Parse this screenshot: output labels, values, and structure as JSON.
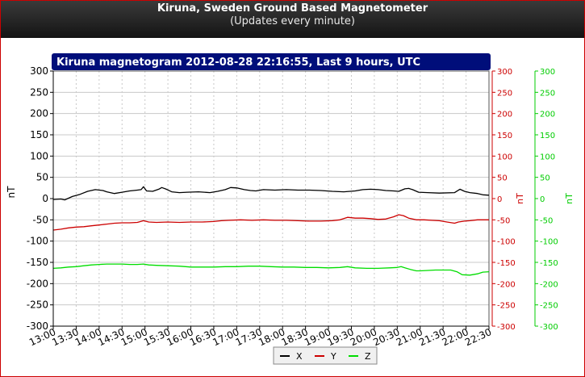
{
  "header": {
    "title": "Kiruna, Sweden Ground Based Magnetometer",
    "subtitle": "(Updates every minute)"
  },
  "chart_data": {
    "type": "line",
    "title": "Kiruna magnetogram 2012-08-28 22:16:55, Last 9 hours, UTC",
    "ylabel": "nT",
    "ylabel_right_1": "nT",
    "ylabel_right_2": "nT",
    "ylim": [
      -300,
      300
    ],
    "yticks": [
      300,
      250,
      200,
      150,
      100,
      50,
      0,
      -50,
      -100,
      -150,
      -200,
      -250,
      -300
    ],
    "yticks_right": [
      "300",
      "250",
      "200",
      "150",
      "100",
      "50",
      "0",
      "-50",
      "-100",
      "-150",
      "-200",
      "-250",
      "-300"
    ],
    "xlim": [
      0,
      570
    ],
    "xticks": [
      {
        "t": 0,
        "label": "13:00"
      },
      {
        "t": 30,
        "label": "13:30"
      },
      {
        "t": 60,
        "label": "14:00"
      },
      {
        "t": 90,
        "label": "14:30"
      },
      {
        "t": 120,
        "label": "15:00"
      },
      {
        "t": 150,
        "label": "15:30"
      },
      {
        "t": 180,
        "label": "16:00"
      },
      {
        "t": 210,
        "label": "16:30"
      },
      {
        "t": 240,
        "label": "17:00"
      },
      {
        "t": 270,
        "label": "17:30"
      },
      {
        "t": 300,
        "label": "18:00"
      },
      {
        "t": 330,
        "label": "18:30"
      },
      {
        "t": 360,
        "label": "19:00"
      },
      {
        "t": 390,
        "label": "19:30"
      },
      {
        "t": 420,
        "label": "20:00"
      },
      {
        "t": 450,
        "label": "20:30"
      },
      {
        "t": 480,
        "label": "21:00"
      },
      {
        "t": 510,
        "label": "21:30"
      },
      {
        "t": 540,
        "label": "22:00"
      },
      {
        "t": 570,
        "label": "22:30"
      }
    ],
    "grid": true,
    "legend_position": "bottom-center",
    "series": [
      {
        "name": "X",
        "color": "#000000",
        "points": [
          [
            0,
            -2
          ],
          [
            10,
            -1
          ],
          [
            15,
            -3
          ],
          [
            25,
            5
          ],
          [
            35,
            10
          ],
          [
            45,
            17
          ],
          [
            55,
            21
          ],
          [
            65,
            19
          ],
          [
            70,
            16
          ],
          [
            80,
            12
          ],
          [
            90,
            15
          ],
          [
            100,
            18
          ],
          [
            110,
            20
          ],
          [
            115,
            21
          ],
          [
            118,
            28
          ],
          [
            122,
            18
          ],
          [
            130,
            17
          ],
          [
            138,
            22
          ],
          [
            142,
            26
          ],
          [
            148,
            22
          ],
          [
            155,
            16
          ],
          [
            165,
            14
          ],
          [
            175,
            15
          ],
          [
            190,
            16
          ],
          [
            205,
            14
          ],
          [
            215,
            17
          ],
          [
            225,
            21
          ],
          [
            232,
            26
          ],
          [
            240,
            25
          ],
          [
            250,
            21
          ],
          [
            258,
            19
          ],
          [
            265,
            18
          ],
          [
            275,
            21
          ],
          [
            290,
            20
          ],
          [
            305,
            21
          ],
          [
            320,
            20
          ],
          [
            335,
            20
          ],
          [
            350,
            19
          ],
          [
            365,
            17
          ],
          [
            380,
            16
          ],
          [
            395,
            18
          ],
          [
            405,
            21
          ],
          [
            415,
            22
          ],
          [
            425,
            21
          ],
          [
            435,
            19
          ],
          [
            445,
            18
          ],
          [
            452,
            17
          ],
          [
            460,
            23
          ],
          [
            465,
            24
          ],
          [
            470,
            21
          ],
          [
            478,
            15
          ],
          [
            490,
            14
          ],
          [
            505,
            13
          ],
          [
            525,
            14
          ],
          [
            532,
            22
          ],
          [
            538,
            17
          ],
          [
            545,
            14
          ],
          [
            555,
            12
          ],
          [
            562,
            9
          ],
          [
            570,
            8
          ]
        ]
      },
      {
        "name": "Y",
        "color": "#cc0000",
        "points": [
          [
            0,
            -74
          ],
          [
            10,
            -72
          ],
          [
            20,
            -69
          ],
          [
            30,
            -67
          ],
          [
            40,
            -66
          ],
          [
            50,
            -64
          ],
          [
            60,
            -62
          ],
          [
            70,
            -60
          ],
          [
            80,
            -58
          ],
          [
            90,
            -57
          ],
          [
            100,
            -57
          ],
          [
            110,
            -56
          ],
          [
            118,
            -52
          ],
          [
            125,
            -55
          ],
          [
            135,
            -56
          ],
          [
            150,
            -55
          ],
          [
            165,
            -56
          ],
          [
            180,
            -55
          ],
          [
            195,
            -55
          ],
          [
            210,
            -54
          ],
          [
            220,
            -52
          ],
          [
            230,
            -51
          ],
          [
            245,
            -50
          ],
          [
            260,
            -51
          ],
          [
            275,
            -50
          ],
          [
            290,
            -51
          ],
          [
            305,
            -51
          ],
          [
            320,
            -52
          ],
          [
            335,
            -53
          ],
          [
            350,
            -53
          ],
          [
            365,
            -52
          ],
          [
            375,
            -50
          ],
          [
            385,
            -44
          ],
          [
            395,
            -46
          ],
          [
            405,
            -46
          ],
          [
            415,
            -47
          ],
          [
            425,
            -49
          ],
          [
            435,
            -48
          ],
          [
            445,
            -43
          ],
          [
            452,
            -38
          ],
          [
            458,
            -40
          ],
          [
            465,
            -46
          ],
          [
            475,
            -50
          ],
          [
            485,
            -50
          ],
          [
            495,
            -51
          ],
          [
            505,
            -52
          ],
          [
            515,
            -55
          ],
          [
            525,
            -58
          ],
          [
            530,
            -55
          ],
          [
            538,
            -53
          ],
          [
            545,
            -52
          ],
          [
            555,
            -50
          ],
          [
            570,
            -50
          ]
        ]
      },
      {
        "name": "Z",
        "color": "#00dd00",
        "points": [
          [
            0,
            -164
          ],
          [
            10,
            -163
          ],
          [
            20,
            -161
          ],
          [
            30,
            -160
          ],
          [
            40,
            -158
          ],
          [
            50,
            -156
          ],
          [
            60,
            -155
          ],
          [
            70,
            -154
          ],
          [
            80,
            -154
          ],
          [
            90,
            -154
          ],
          [
            100,
            -155
          ],
          [
            110,
            -155
          ],
          [
            118,
            -154
          ],
          [
            125,
            -156
          ],
          [
            135,
            -157
          ],
          [
            150,
            -158
          ],
          [
            165,
            -159
          ],
          [
            180,
            -161
          ],
          [
            195,
            -161
          ],
          [
            210,
            -161
          ],
          [
            225,
            -160
          ],
          [
            240,
            -160
          ],
          [
            255,
            -159
          ],
          [
            270,
            -159
          ],
          [
            285,
            -160
          ],
          [
            300,
            -161
          ],
          [
            315,
            -161
          ],
          [
            330,
            -162
          ],
          [
            345,
            -162
          ],
          [
            360,
            -163
          ],
          [
            375,
            -162
          ],
          [
            385,
            -160
          ],
          [
            395,
            -163
          ],
          [
            410,
            -164
          ],
          [
            425,
            -164
          ],
          [
            440,
            -163
          ],
          [
            450,
            -162
          ],
          [
            455,
            -160
          ],
          [
            460,
            -163
          ],
          [
            468,
            -167
          ],
          [
            475,
            -170
          ],
          [
            480,
            -170
          ],
          [
            490,
            -169
          ],
          [
            500,
            -168
          ],
          [
            510,
            -168
          ],
          [
            520,
            -168
          ],
          [
            528,
            -172
          ],
          [
            535,
            -179
          ],
          [
            545,
            -180
          ],
          [
            555,
            -177
          ],
          [
            562,
            -173
          ],
          [
            570,
            -172
          ]
        ]
      }
    ]
  }
}
